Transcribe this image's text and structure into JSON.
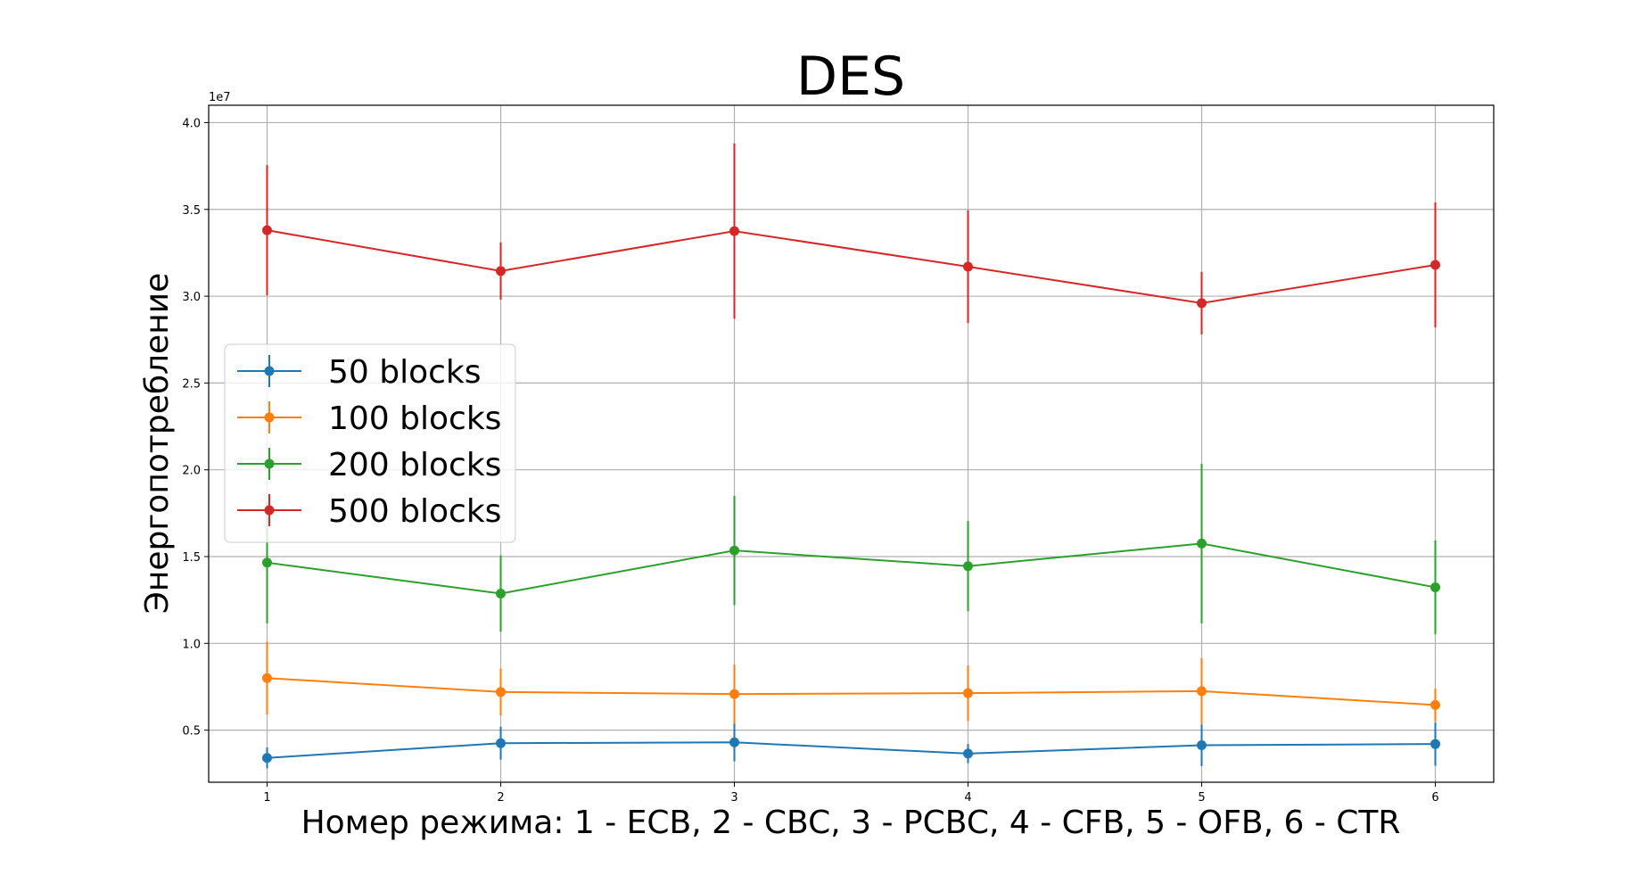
{
  "chart_data": {
    "type": "line",
    "title": "DES",
    "xlabel": "Номер режима: 1 - ECB, 2 - CBC, 3 - PCBC, 4 - CFB, 5 - OFB, 6 - CTR",
    "ylabel": "Энергопотребление",
    "y_offset_label": "1e7",
    "y_scale": 10000000,
    "x": [
      1,
      2,
      3,
      4,
      5,
      6
    ],
    "xlim": [
      0.75,
      6.25
    ],
    "ylim": [
      2000000,
      41000000
    ],
    "x_ticks": [
      1,
      2,
      3,
      4,
      5,
      6
    ],
    "x_tick_labels": [
      "1",
      "2",
      "3",
      "4",
      "5",
      "6"
    ],
    "y_ticks": [
      5000000,
      10000000,
      15000000,
      20000000,
      25000000,
      30000000,
      35000000,
      40000000
    ],
    "y_tick_labels": [
      "0.5",
      "1.0",
      "1.5",
      "2.0",
      "2.5",
      "3.0",
      "3.5",
      "4.0"
    ],
    "grid": true,
    "legend_position": "center-left",
    "series": [
      {
        "name": "50 blocks",
        "color": "#1f77b4",
        "values": [
          3400000,
          4250000,
          4300000,
          3650000,
          4130000,
          4200000
        ],
        "errors": [
          600000,
          950000,
          1100000,
          550000,
          1200000,
          1250000
        ]
      },
      {
        "name": "100 blocks",
        "color": "#ff7f0e",
        "values": [
          8000000,
          7200000,
          7080000,
          7130000,
          7250000,
          6450000
        ],
        "errors": [
          2100000,
          1350000,
          1700000,
          1600000,
          1900000,
          950000
        ]
      },
      {
        "name": "200 blocks",
        "color": "#2ca02c",
        "values": [
          14650000,
          12870000,
          15350000,
          14450000,
          15750000,
          13230000
        ],
        "errors": [
          3500000,
          2200000,
          3150000,
          2600000,
          4600000,
          2700000
        ]
      },
      {
        "name": "500 blocks",
        "color": "#d62728",
        "values": [
          33800000,
          31450000,
          33750000,
          31700000,
          29600000,
          31800000
        ],
        "errors": [
          3750000,
          1650000,
          5050000,
          3250000,
          1800000,
          3600000
        ]
      }
    ]
  }
}
